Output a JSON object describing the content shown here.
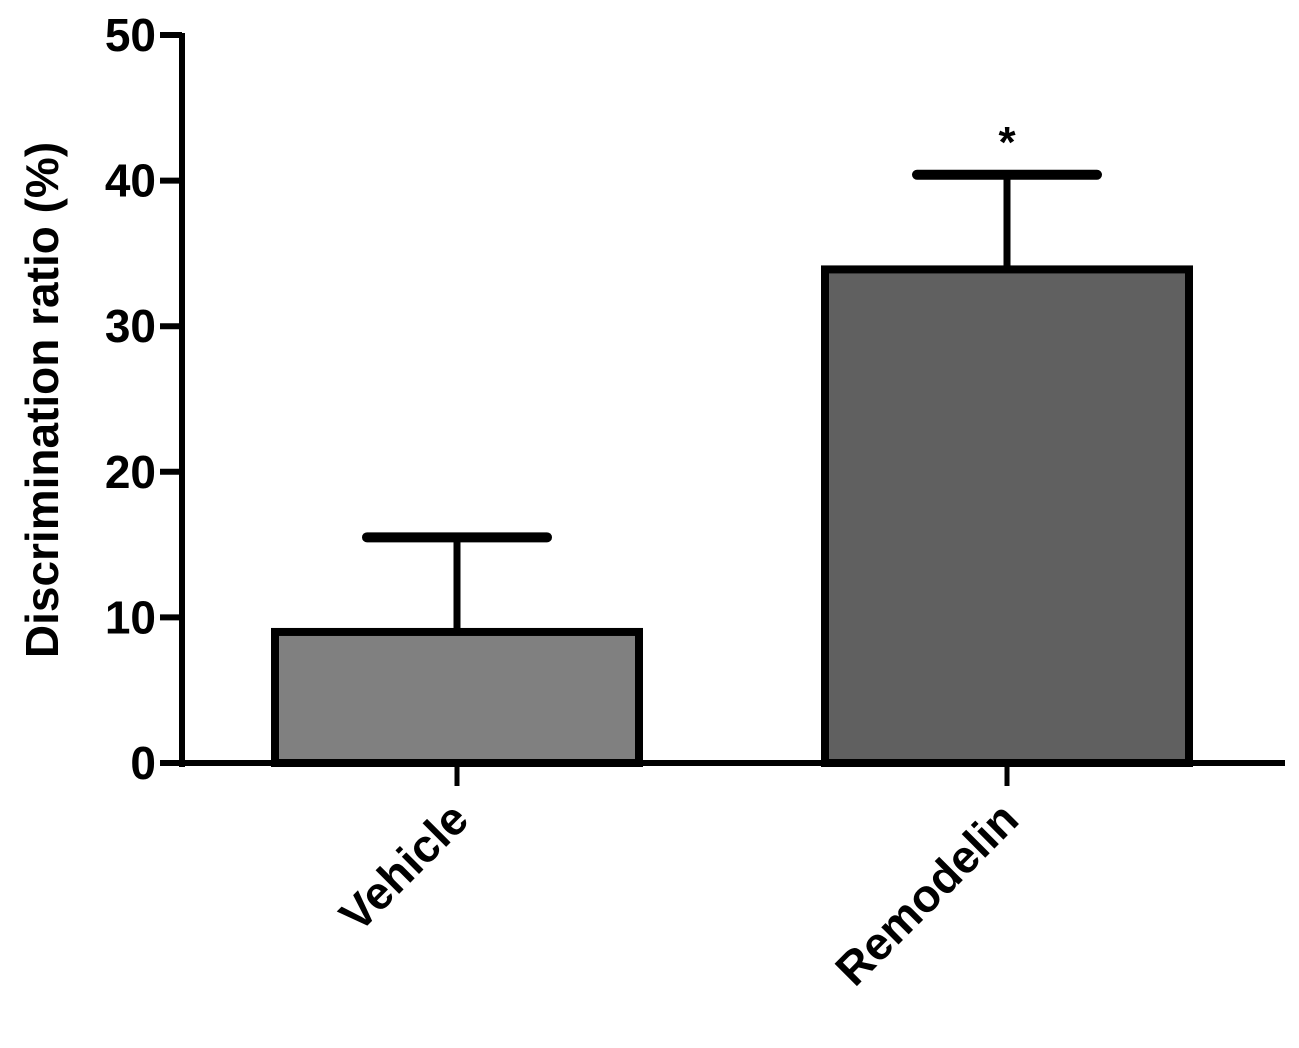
{
  "chart_data": {
    "type": "bar",
    "title": "",
    "xlabel": "",
    "ylabel": "Discrimination ratio (%)",
    "ylim": [
      0,
      50
    ],
    "yticks": [
      0,
      10,
      20,
      30,
      40,
      50
    ],
    "ytick_labels": [
      "0",
      "10",
      "20",
      "30",
      "40",
      "50"
    ],
    "grid": false,
    "categories": [
      "Vehicle",
      "Remodelin"
    ],
    "values": [
      9.0,
      33.9
    ],
    "error_upper": [
      6.5,
      6.5
    ],
    "colors": [
      "#808080",
      "#606060"
    ],
    "annotations": [
      {
        "category": "Remodelin",
        "text": "*"
      }
    ]
  }
}
